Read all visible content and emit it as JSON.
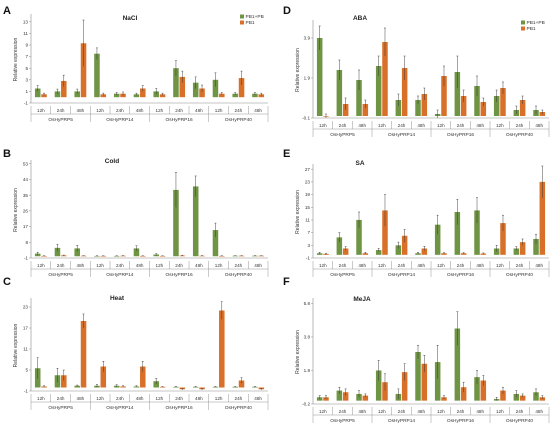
{
  "colors": {
    "PB1+PB": "#6f9443",
    "PB1": "#d9702a",
    "axis": "#8a8a8a",
    "error": "#333333"
  },
  "chart_data": [
    {
      "panel": "A",
      "title": "NaCl",
      "type": "bar",
      "ylabel": "Relative expression",
      "yticks": [
        -1,
        1,
        3,
        5,
        7,
        9,
        11,
        13
      ],
      "ylim": [
        -1,
        14
      ],
      "legend": {
        "show": true,
        "placement": "top-right",
        "entries": [
          "PB1+PB",
          "PB1"
        ]
      },
      "groups": [
        "OsHyPRP5",
        "OsHyPRP14",
        "OsHyPRP16",
        "OsHyPRP40"
      ],
      "timepoints": [
        "12h",
        "24h",
        "48h"
      ],
      "series": [
        {
          "name": "PB1+PB",
          "values": [
            1.5,
            1.0,
            1.0,
            7.5,
            0.6,
            0.5,
            1.0,
            5.0,
            2.5,
            3.0,
            0.6,
            0.6
          ],
          "errors": [
            0.5,
            0.4,
            0.4,
            1.0,
            0.2,
            0.2,
            0.5,
            1.3,
            1.0,
            1.2,
            0.2,
            0.2
          ]
        },
        {
          "name": "PB1",
          "values": [
            0.5,
            2.8,
            9.3,
            0.5,
            0.6,
            1.5,
            0.5,
            3.5,
            1.5,
            0.6,
            3.3,
            0.5
          ],
          "errors": [
            0.2,
            1.0,
            4.0,
            0.2,
            0.3,
            0.5,
            0.2,
            1.0,
            0.6,
            0.2,
            1.2,
            0.2
          ]
        }
      ]
    },
    {
      "panel": "D",
      "title": "ABA",
      "type": "bar",
      "ylabel": "Relative expression",
      "yticks": [
        -0.1,
        1.9,
        3.9
      ],
      "ylim": [
        -0.1,
        4.7
      ],
      "legend": {
        "show": true,
        "placement": "top-right",
        "entries": [
          "PB1+PB",
          "PB1"
        ]
      },
      "groups": [
        "OsHyPRP5",
        "OsHyPRP14",
        "OsHyPRP16",
        "OsHyPRP40"
      ],
      "timepoints": [
        "12h",
        "24h",
        "48h"
      ],
      "series": [
        {
          "name": "PB1+PB",
          "values": [
            3.9,
            2.3,
            1.8,
            2.5,
            0.8,
            0.8,
            0.1,
            2.2,
            1.5,
            1.0,
            0.3,
            0.3
          ],
          "errors": [
            0.6,
            0.5,
            0.5,
            0.5,
            0.3,
            0.2,
            0.2,
            0.8,
            0.5,
            0.3,
            0.2,
            0.2
          ]
        },
        {
          "name": "PB1",
          "values": [
            0.0,
            0.6,
            0.6,
            3.7,
            2.4,
            1.1,
            2.0,
            1.0,
            0.7,
            1.4,
            0.8,
            0.2
          ],
          "errors": [
            0.1,
            0.3,
            0.2,
            0.7,
            0.6,
            0.3,
            0.5,
            0.3,
            0.2,
            0.3,
            0.2,
            0.1
          ]
        }
      ]
    },
    {
      "panel": "B",
      "title": "Cold",
      "type": "bar",
      "ylabel": "Relative expression",
      "yticks": [
        -1,
        8,
        17,
        26,
        35,
        44,
        53
      ],
      "ylim": [
        -1,
        54
      ],
      "legend": {
        "show": false
      },
      "groups": [
        "OsHyPRP5",
        "OsHyPRP14",
        "OsHyPRP16",
        "OsHyPRP40"
      ],
      "timepoints": [
        "12h",
        "24h",
        "48h"
      ],
      "series": [
        {
          "name": "PB1+PB",
          "values": [
            1.5,
            4.8,
            4.5,
            0.2,
            0.2,
            4.5,
            1.0,
            38.0,
            40.0,
            15.0,
            0.3,
            0.3
          ],
          "errors": [
            0.8,
            2.0,
            1.8,
            0.1,
            0.1,
            1.5,
            0.5,
            10.0,
            6.0,
            4.0,
            0.1,
            0.1
          ]
        },
        {
          "name": "PB1",
          "values": [
            0.2,
            0.5,
            0.3,
            0.2,
            0.3,
            0.2,
            0.2,
            0.4,
            0.3,
            0.2,
            0.3,
            0.3
          ],
          "errors": [
            0.1,
            0.2,
            0.1,
            0.1,
            0.1,
            0.1,
            0.1,
            0.2,
            0.1,
            0.1,
            0.1,
            0.1
          ]
        }
      ]
    },
    {
      "panel": "E",
      "title": "SA",
      "type": "bar",
      "ylabel": "Relative expression",
      "yticks": [
        -1,
        3,
        7,
        11,
        15,
        19,
        23,
        27
      ],
      "ylim": [
        -1,
        28
      ],
      "legend": {
        "show": false
      },
      "groups": [
        "OsHyPRP5",
        "OsHyPRP14",
        "OsHyPRP16",
        "OsHyPRP40"
      ],
      "timepoints": [
        "12h",
        "24h",
        "48h"
      ],
      "series": [
        {
          "name": "PB1+PB",
          "values": [
            0.5,
            5.5,
            11.0,
            1.5,
            3.0,
            0.5,
            9.5,
            13.5,
            14.0,
            2.0,
            2.0,
            5.0
          ],
          "errors": [
            0.3,
            1.5,
            2.5,
            0.5,
            1.0,
            0.3,
            3.0,
            4.0,
            4.0,
            1.0,
            0.6,
            1.5
          ]
        },
        {
          "name": "PB1",
          "values": [
            0.3,
            2.0,
            0.5,
            14.0,
            6.0,
            2.0,
            0.5,
            0.5,
            0.4,
            10.0,
            4.0,
            23.0
          ],
          "errors": [
            0.2,
            0.6,
            0.3,
            5.0,
            2.0,
            0.7,
            0.2,
            0.2,
            0.2,
            2.5,
            1.0,
            5.0
          ]
        }
      ]
    },
    {
      "panel": "C",
      "title": "Heat",
      "type": "bar",
      "ylabel": "Relative expression",
      "yticks": [
        -1,
        5,
        11,
        17,
        23
      ],
      "ylim": [
        -1,
        25
      ],
      "legend": {
        "show": false
      },
      "groups": [
        "OsHyPRP5",
        "OsHyPRP14",
        "OsHyPRP16",
        "OsHyPRP40"
      ],
      "timepoints": [
        "12h",
        "24h",
        "48h"
      ],
      "series": [
        {
          "name": "PB1+PB",
          "values": [
            5.5,
            3.5,
            0.5,
            0.5,
            0.5,
            0.3,
            1.8,
            0.2,
            0.2,
            0.2,
            0.2,
            0.2
          ],
          "errors": [
            3.0,
            2.0,
            0.2,
            0.4,
            0.3,
            0.2,
            0.8,
            0.1,
            0.1,
            0.1,
            0.1,
            0.1
          ]
        },
        {
          "name": "PB1",
          "values": [
            0.3,
            3.5,
            19.0,
            6.0,
            0.3,
            6.0,
            0.2,
            -0.5,
            -0.5,
            22.0,
            2.0,
            -0.5
          ],
          "errors": [
            0.2,
            1.5,
            2.0,
            1.5,
            0.2,
            1.5,
            0.1,
            0.2,
            0.2,
            2.5,
            0.8,
            0.2
          ]
        }
      ]
    },
    {
      "panel": "F",
      "title": "MeJA",
      "type": "bar",
      "ylabel": "Relative expression",
      "yticks": [
        -0.2,
        1.8,
        3.8,
        5.8
      ],
      "ylim": [
        -0.2,
        6.0
      ],
      "legend": {
        "show": false
      },
      "groups": [
        "OsHyPRP5",
        "OsHyPRP14",
        "OsHyPRP16",
        "OsHyPRP40"
      ],
      "timepoints": [
        "12h",
        "24h",
        "48h"
      ],
      "series": [
        {
          "name": "PB1+PB",
          "values": [
            0.2,
            0.6,
            0.4,
            1.8,
            0.4,
            2.9,
            2.3,
            4.3,
            1.4,
            0.1,
            0.4,
            0.5
          ],
          "errors": [
            0.1,
            0.2,
            0.2,
            0.6,
            0.3,
            0.4,
            1.0,
            1.0,
            0.4,
            0.1,
            0.2,
            0.2
          ]
        },
        {
          "name": "PB1",
          "values": [
            0.2,
            0.5,
            0.3,
            1.1,
            1.7,
            2.2,
            0.2,
            0.8,
            1.2,
            0.6,
            0.3,
            0.2
          ],
          "errors": [
            0.1,
            0.2,
            0.1,
            0.5,
            0.5,
            0.5,
            0.1,
            0.3,
            0.3,
            0.2,
            0.1,
            0.1
          ]
        }
      ]
    }
  ]
}
